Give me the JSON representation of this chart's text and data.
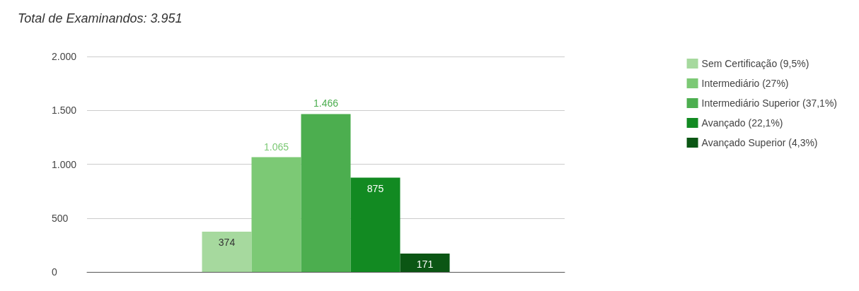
{
  "chart_data": {
    "type": "bar",
    "title": "Total de Examinandos: 3.951",
    "categories": [
      null
    ],
    "series": [
      {
        "name": "Sem Certificação (9,5%)",
        "color": "#a6d99e",
        "values": [
          374
        ],
        "value_labels": [
          "374"
        ]
      },
      {
        "name": "Intermediário (27%)",
        "color": "#7cc975",
        "values": [
          1065
        ],
        "value_labels": [
          "1.065"
        ]
      },
      {
        "name": "Intermediário Superior (37,1%)",
        "color": "#4cae4f",
        "values": [
          1466
        ],
        "value_labels": [
          "1.466"
        ]
      },
      {
        "name": "Avançado (22,1%)",
        "color": "#128a22",
        "values": [
          875
        ],
        "value_labels": [
          "875"
        ]
      },
      {
        "name": "Avançado Superior (4,3%)",
        "color": "#0b5614",
        "values": [
          171
        ],
        "value_labels": [
          "171"
        ]
      }
    ],
    "ylim": [
      0,
      2000
    ],
    "yticks": [
      {
        "value": 0,
        "label": "0"
      },
      {
        "value": 500,
        "label": "500"
      },
      {
        "value": 1000,
        "label": "1.000"
      },
      {
        "value": 1500,
        "label": "1.500"
      },
      {
        "value": 2000,
        "label": "2.000"
      }
    ],
    "grid": "y",
    "legend": "right"
  }
}
